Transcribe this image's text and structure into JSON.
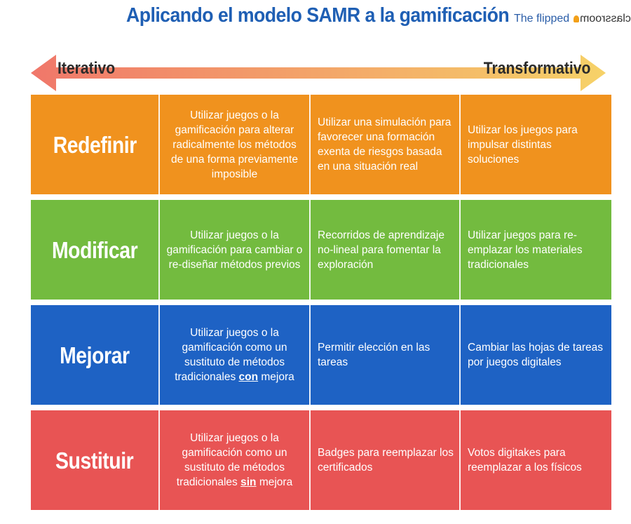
{
  "title": "Aplicando el modelo SAMR a la gamificación",
  "brand": {
    "text": "The flipped",
    "mirrored": "classroom"
  },
  "arrow": {
    "left_label": "Iterativo",
    "right_label": "Transformativo",
    "colors": {
      "left": "#f0776a",
      "right": "#f6d268"
    }
  },
  "rows": [
    {
      "level": "Redefinir",
      "color": "#f0921e",
      "c1": "Utilizar juegos o la gamificación para alterar radicalmente los métodos de una forma previamente imposible",
      "c2": "Utilizar una simulación para favorecer una formación exenta de riesgos basada en una situación real",
      "c3": "Utilizar los juegos para impulsar distintas soluciones"
    },
    {
      "level": "Modificar",
      "color": "#73bb3f",
      "c1": "Utilizar juegos o la gamificación para cambiar  o re-diseñar métodos previos",
      "c2": "Recorridos de aprendizaje no-lineal para fomentar la exploración",
      "c3": "Utilizar juegos para re-emplazar los materiales tradicionales"
    },
    {
      "level": "Mejorar",
      "color": "#1e62c4",
      "c1_parts": [
        "Utilizar juegos o la gamificación como un sustituto de métodos tradicionales ",
        "con",
        " mejora"
      ],
      "c2": "Permitir elección en las tareas",
      "c3": "Cambiar las hojas de tareas por juegos digitales"
    },
    {
      "level": "Sustituir",
      "color": "#e85454",
      "c1_parts": [
        "Utilizar juegos o la gamificación como un sustituto de métodos tradicionales ",
        "sin",
        " mejora"
      ],
      "c2": "Badges para reemplazar los certificados",
      "c3": "Votos digitakes para reemplazar a los físicos"
    }
  ]
}
